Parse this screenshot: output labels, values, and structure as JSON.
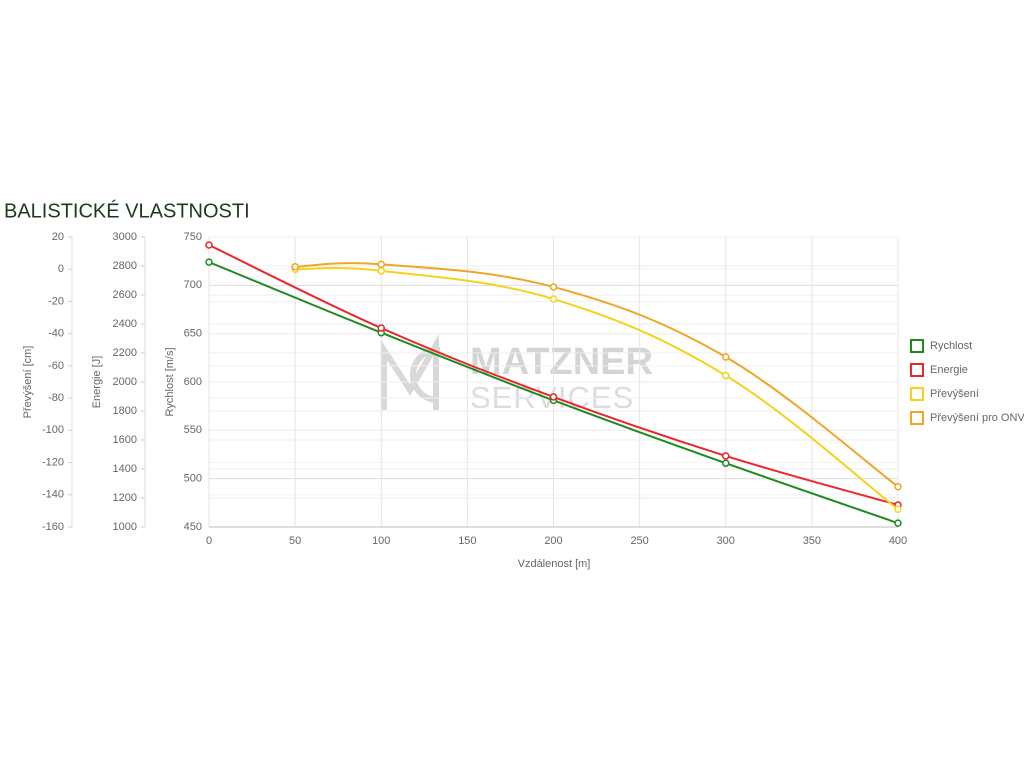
{
  "chart_data": {
    "type": "line",
    "title": "BALISTICKÉ VLASTNOSTI",
    "watermark": [
      "MATZNER",
      "SERVICES"
    ],
    "x_label": "Vzdálenost [m]",
    "y_label": "Rychlost [m/s]",
    "y2_label": "Energie [J]",
    "y3_label": "Převýšení [cm]",
    "x": [
      0,
      50,
      100,
      200,
      300,
      400
    ],
    "xlim": [
      0,
      400
    ],
    "xticks": [
      0,
      50,
      100,
      150,
      200,
      250,
      300,
      350,
      400
    ],
    "ylim": [
      450,
      750
    ],
    "yticks": [
      450,
      500,
      550,
      600,
      650,
      700,
      750
    ],
    "y2lim": [
      1000,
      3000
    ],
    "y2ticks": [
      1000,
      1200,
      1400,
      1600,
      1800,
      2000,
      2200,
      2400,
      2600,
      2800,
      3000
    ],
    "y3lim": [
      -160,
      20
    ],
    "y3ticks": [
      -160,
      -140,
      -120,
      -100,
      -80,
      -60,
      -40,
      -20,
      0,
      20
    ],
    "grid": true,
    "legend": "right",
    "series": [
      {
        "name": "Rychlost",
        "color": "#1e8a1e",
        "axis": "y",
        "values": [
          724,
          null,
          651,
          581,
          516,
          454
        ]
      },
      {
        "name": "Energie",
        "color": "#e8262b",
        "axis": "y2",
        "values": [
          2945,
          null,
          2372,
          1897,
          1490,
          1152
        ]
      },
      {
        "name": "Převýšení",
        "color": "#f5d21c",
        "axis": "y3",
        "values": [
          null,
          0,
          -1,
          -18.5,
          -66,
          -149
        ]
      },
      {
        "name": "Převýšení pro ONV",
        "color": "#f0a524",
        "axis": "y3",
        "values": [
          null,
          1.5,
          3,
          -11,
          -54.5,
          -135
        ]
      }
    ]
  }
}
